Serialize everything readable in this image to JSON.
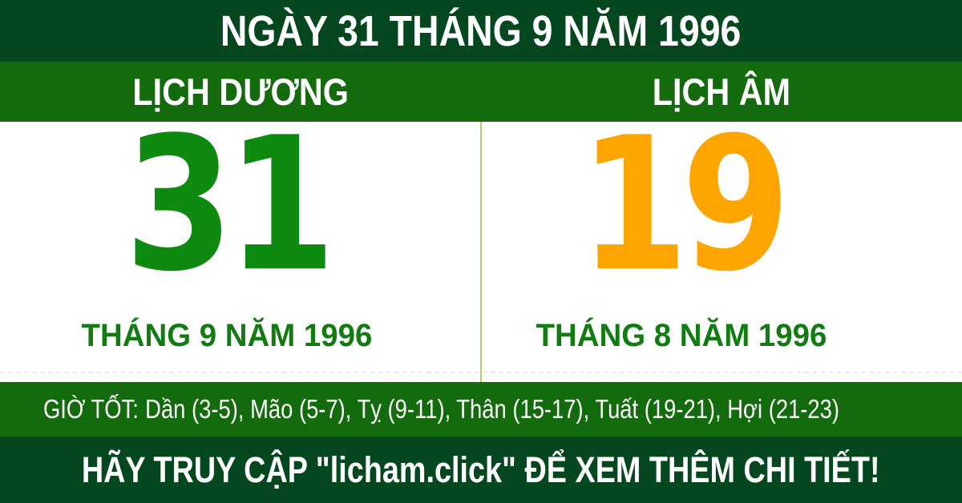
{
  "header": {
    "title": "NGÀY 31 THÁNG 9 NĂM 1996"
  },
  "tabs": {
    "solar_label": "LỊCH DƯƠNG",
    "lunar_label": "LỊCH ÂM"
  },
  "solar": {
    "day": "31",
    "month_year": "THÁNG 9 NĂM 1996"
  },
  "lunar": {
    "day": "19",
    "month_year": "THÁNG 8 NĂM 1996"
  },
  "good_hours": {
    "label": "GIỜ TỐT:",
    "hours": "Dần (3-5), Mão (5-7), Tỵ (9-11), Thân (15-17), Tuất (19-21), Hợi (21-23)"
  },
  "footer": {
    "text": "HÃY TRUY CẬP \"licham.click\" ĐỂ XEM THÊM CHI TIẾT!"
  },
  "colors": {
    "dark_green": "#05481f",
    "medium_green": "#146b0e",
    "solar_day_green": "#0e8a10",
    "month_text_green": "#127c12",
    "lunar_day_orange": "#ffa502",
    "divider_light_green": "#a9d36b",
    "text_white": "#ffffff"
  }
}
